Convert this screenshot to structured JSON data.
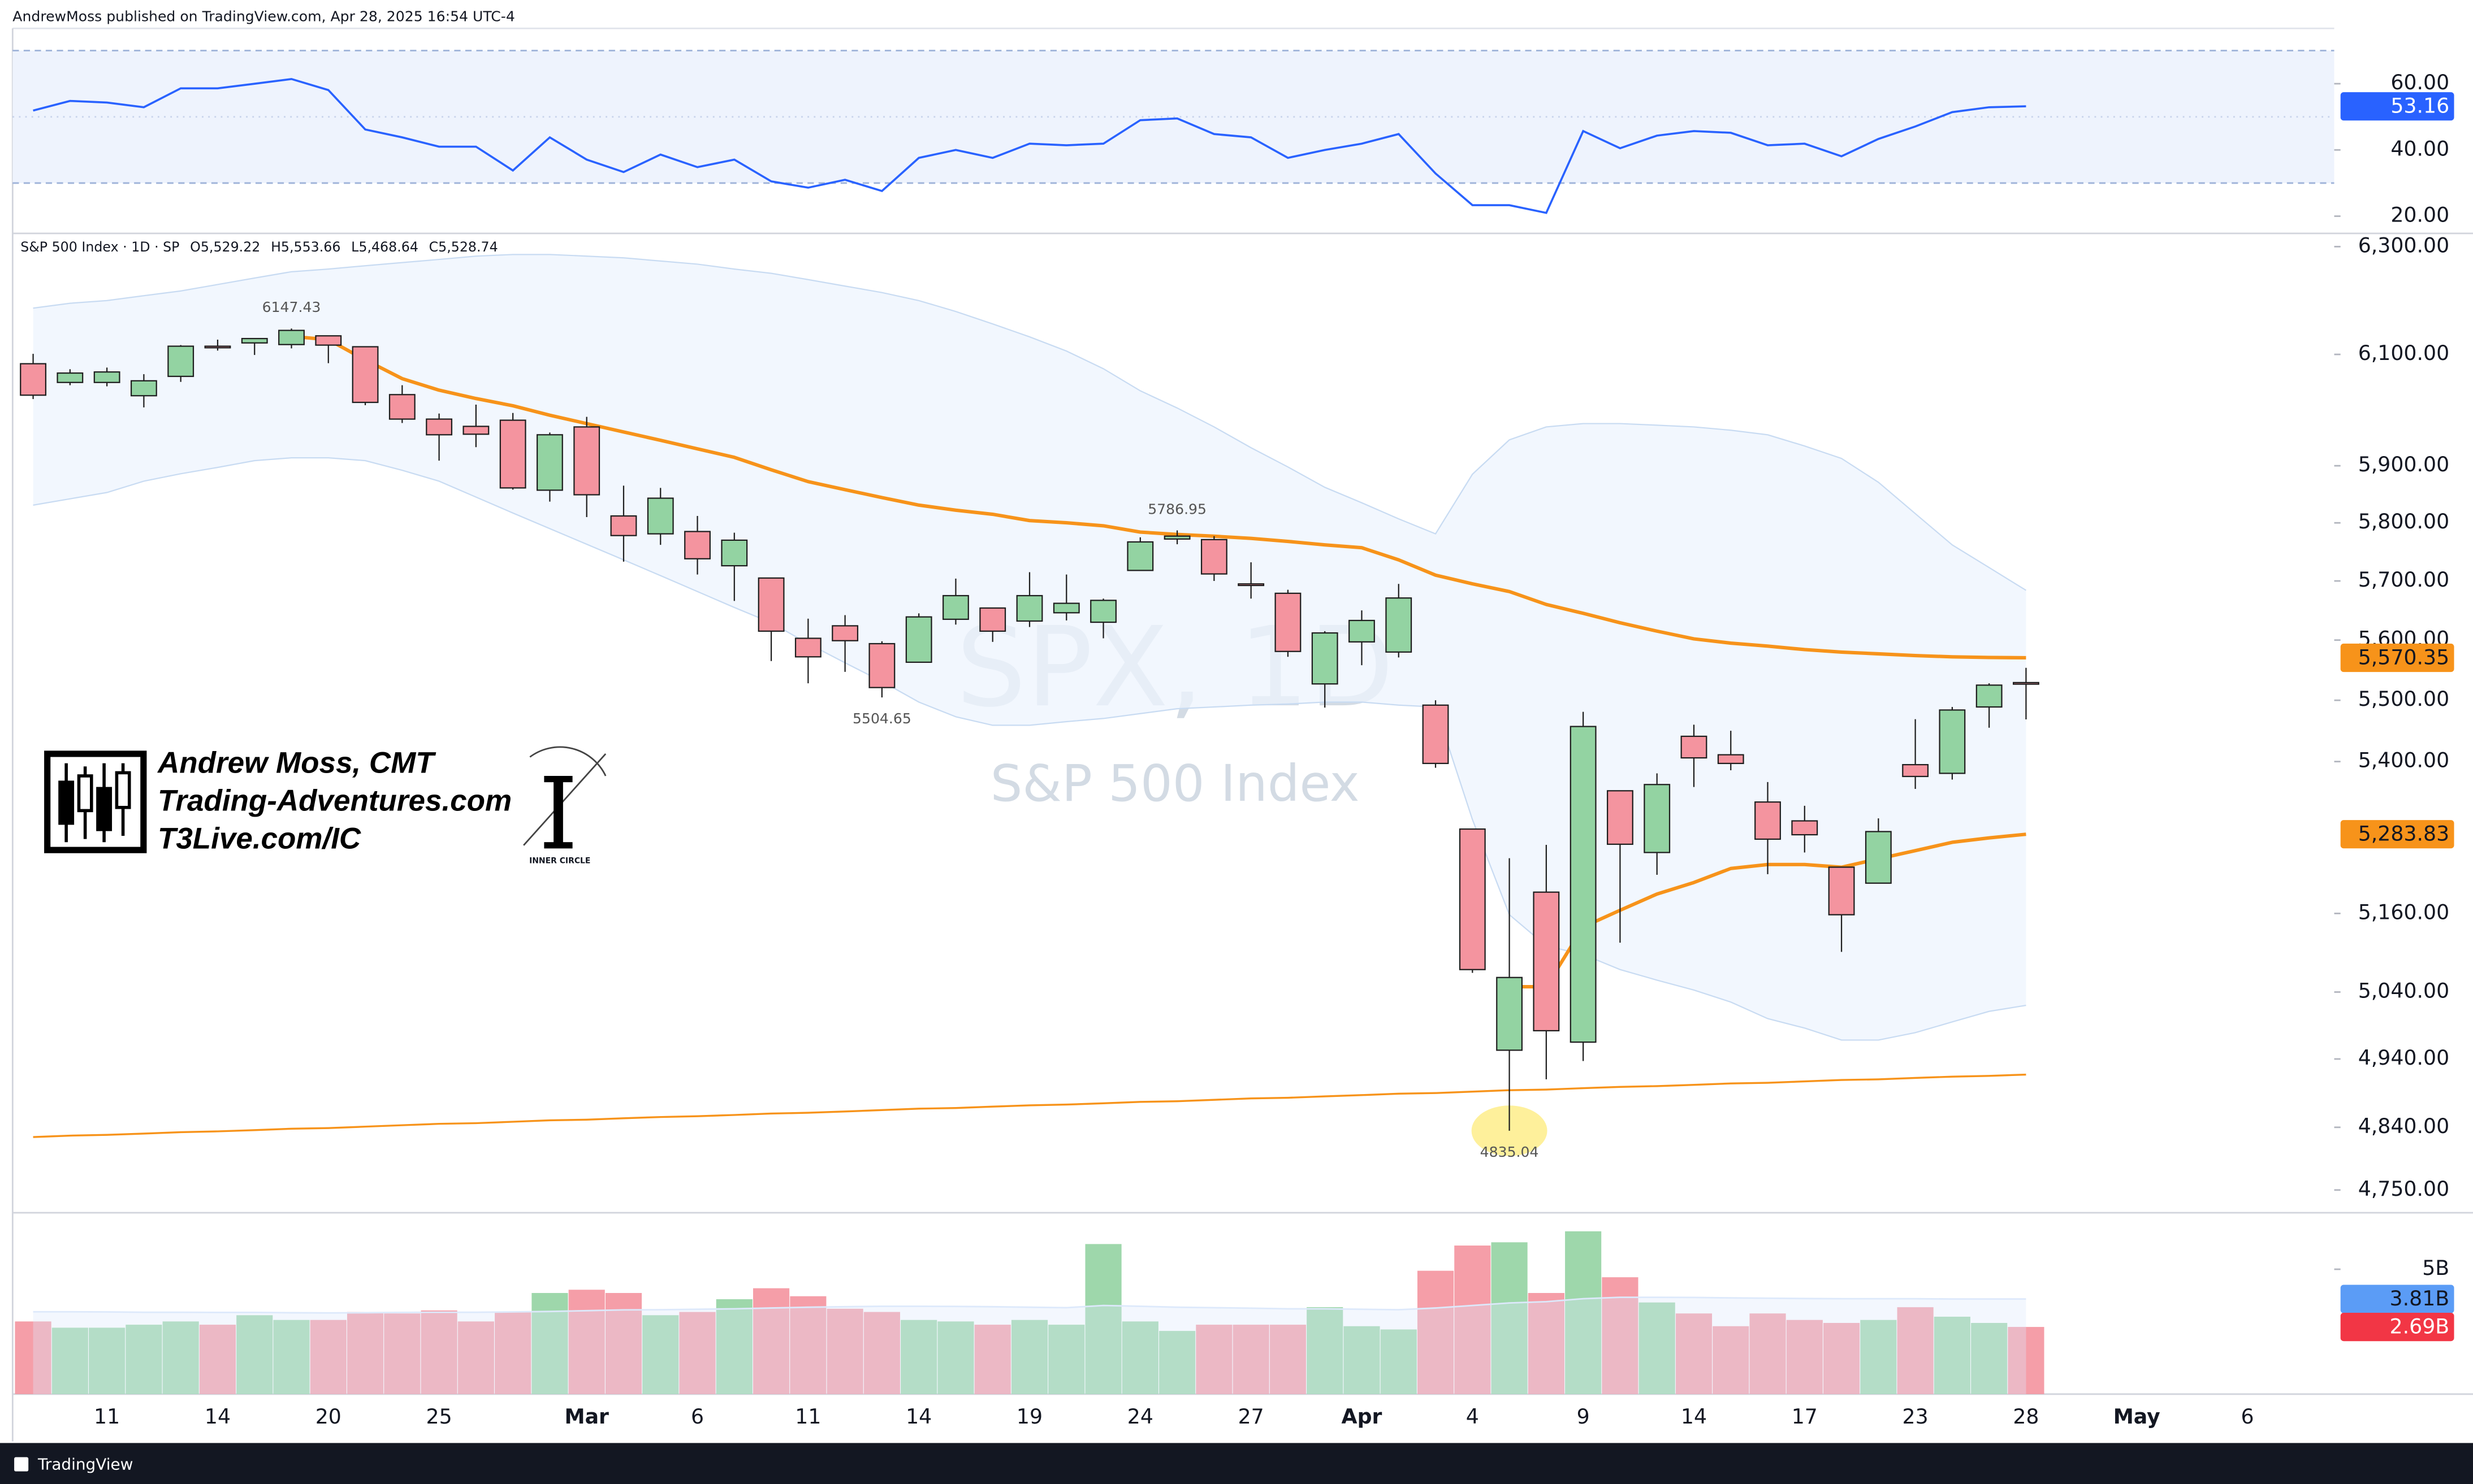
{
  "header": {
    "publisher": "AndrewMoss published on TradingView.com, Apr 28, 2025 16:54 UTC-4"
  },
  "footer": {
    "brand": "TradingView"
  },
  "watermark": {
    "symbol": "SPX, 1D",
    "name": "S&P 500 Index"
  },
  "logo": {
    "lines": [
      "Andrew Moss, CMT",
      "Trading-Adventures.com",
      "T3Live.com/IC"
    ],
    "badge": "INNER CIRCLE"
  },
  "chart_data": [
    {
      "type": "candlestick",
      "title": "S&P 500 Index · 1D · SP",
      "ohlc_legend": [
        "O5,529.22",
        "H5,553.66",
        "L5,468.64",
        "C5,528.74"
      ],
      "categories": [
        null,
        null,
        "11",
        null,
        null,
        "14",
        null,
        null,
        "20",
        null,
        null,
        "25",
        null,
        null,
        null,
        "Mar",
        null,
        null,
        "6",
        null,
        null,
        "11",
        null,
        null,
        "14",
        null,
        null,
        "19",
        null,
        null,
        "24",
        null,
        null,
        "27",
        null,
        null,
        "Apr",
        null,
        null,
        "4",
        null,
        null,
        "9",
        null,
        null,
        "14",
        null,
        null,
        "17",
        null,
        null,
        "23",
        null,
        null,
        "28",
        null,
        null,
        "May",
        null,
        null,
        "6"
      ],
      "open": [
        6083,
        6049,
        6049,
        6025,
        6060,
        6115,
        6121,
        6118,
        6134,
        6114,
        6027,
        5983,
        5970,
        5981,
        5857,
        5969,
        5812,
        5781,
        5785,
        5726,
        5705,
        5603,
        5624,
        5594,
        5563,
        5635,
        5654,
        5632,
        5646,
        5630,
        5718,
        5772,
        5771,
        5695,
        5679,
        5527,
        5597,
        5580,
        5492,
        5292,
        4953,
        5193,
        4965,
        5353,
        5255,
        5441,
        5411,
        5335,
        5305,
        5232,
        5207,
        5395,
        5381,
        5489,
        5529.22,
        null,
        null,
        null,
        null,
        null,
        null
      ],
      "high": [
        6101,
        6073,
        6076,
        6064,
        6117,
        6127,
        6129,
        6147.43,
        6134,
        6115,
        6044,
        5993,
        6009,
        5994,
        5959,
        5987,
        5865,
        5861,
        5812,
        5783,
        5705,
        5636,
        5642,
        5598,
        5645,
        5704,
        5654,
        5715,
        5711,
        5670,
        5775,
        5786.95,
        5777,
        5732,
        5685,
        5615,
        5650,
        5695,
        5500,
        5292,
        5246,
        5267,
        5481,
        5353,
        5381,
        5460,
        5450,
        5367,
        5329,
        5232,
        5309,
        5469,
        5489,
        5528,
        5553.66,
        null,
        null,
        null,
        null,
        null,
        null
      ],
      "low": [
        6019,
        6044,
        6042,
        6004,
        6050,
        6107,
        6099,
        6111,
        6084,
        6008,
        5976,
        5909,
        5933,
        5858,
        5837,
        5810,
        5733,
        5762,
        5711,
        5666,
        5565,
        5528,
        5547,
        5504.65,
        5563,
        5626,
        5597,
        5622,
        5633,
        5603,
        5718,
        5763,
        5700,
        5670,
        5572,
        5488,
        5558,
        5571,
        5390,
        5069,
        4835.04,
        4910,
        4937,
        5115,
        5220,
        5359,
        5386,
        5221,
        5255,
        5101,
        5207,
        5356,
        5371,
        5455,
        5468.64,
        null,
        null,
        null,
        null,
        null,
        null
      ],
      "close": [
        6026,
        6066,
        6068,
        6052,
        6115,
        6114,
        6129,
        6144,
        6117,
        6013,
        5983,
        5955,
        5956,
        5861,
        5955,
        5849,
        5778,
        5843,
        5738,
        5770,
        5615,
        5572,
        5599,
        5521,
        5639,
        5675,
        5615,
        5675,
        5662,
        5667,
        5767,
        5777,
        5712,
        5693,
        5581,
        5612,
        5633,
        5671,
        5397,
        5074,
        5062,
        4982,
        5457,
        5268,
        5363,
        5406,
        5397,
        5276,
        5283,
        5158,
        5288,
        5376,
        5484,
        5525,
        5528.74,
        null,
        null,
        null,
        null,
        null,
        null
      ],
      "up_color": "#93d3a2",
      "down_color": "#f4949f",
      "edge_color": "#1e1e1e",
      "overlays": [
        {
          "kind": "band",
          "color": "#c8dbf2",
          "fill": "#edf4fd",
          "upper": [
            6185,
            6194,
            6199,
            6208,
            6217,
            6229,
            6241,
            6253,
            6258,
            6264,
            6270,
            6276,
            6282,
            6285,
            6285,
            6282,
            6279,
            6273,
            6267,
            6258,
            6250,
            6238,
            6226,
            6214,
            6199,
            6179,
            6156,
            6132,
            6106,
            6074,
            6034,
            6003,
            5969,
            5932,
            5898,
            5862,
            5835,
            5807,
            5781,
            5885,
            5946,
            5969,
            5975,
            5975,
            5972,
            5969,
            5963,
            5955,
            5935,
            5913,
            5871,
            5816,
            5762,
            5723,
            5684,
            null,
            null,
            null,
            null,
            null,
            null
          ],
          "lower": [
            5831,
            5842,
            5853,
            5873,
            5886,
            5897,
            5909,
            5914,
            5914,
            5909,
            5892,
            5873,
            5845,
            5817,
            5790,
            5763,
            5736,
            5709,
            5682,
            5655,
            5629,
            5594,
            5562,
            5531,
            5497,
            5473,
            5459,
            5459,
            5465,
            5470,
            5478,
            5486,
            5489,
            5492,
            5494,
            5497,
            5497,
            5492,
            5489,
            5307,
            5158,
            5110,
            5097,
            5074,
            5058,
            5043,
            5025,
            5000,
            4986,
            4968,
            4968,
            4979,
            4995,
            5011,
            5020,
            null,
            null,
            null,
            null,
            null,
            null
          ]
        },
        {
          "kind": "line",
          "color": "#f7931a",
          "width": 1.2,
          "values": [
            4826,
            4828,
            4829,
            4831,
            4833,
            4834,
            4836,
            4838,
            4839,
            4841,
            4843,
            4845,
            4846,
            4848,
            4850,
            4851,
            4853,
            4855,
            4856,
            4858,
            4860,
            4861,
            4863,
            4865,
            4867,
            4868,
            4870,
            4872,
            4873,
            4875,
            4877,
            4878,
            4880,
            4882,
            4883,
            4885,
            4887,
            4889,
            4890,
            4892,
            4894,
            4895,
            4897,
            4899,
            4900,
            4902,
            4904,
            4905,
            4907,
            4909,
            4910,
            4912,
            4914,
            4915,
            4917,
            null,
            null,
            null,
            null,
            null,
            null
          ]
        },
        {
          "kind": "line",
          "color": "#f7931a",
          "width": 2.2,
          "values": [
            null,
            null,
            null,
            null,
            null,
            null,
            null,
            6133,
            6127,
            6090,
            6056,
            6035,
            6020,
            6007,
            5990,
            5975,
            5960,
            5945,
            5930,
            5915,
            5893,
            5872,
            5858,
            5844,
            5831,
            5822,
            5815,
            5804,
            5800,
            5795,
            5784,
            5780,
            5777,
            5773,
            5768,
            5762,
            5757,
            5736,
            5710,
            5695,
            5682,
            5660,
            5645,
            5629,
            5615,
            5602,
            5595,
            5590,
            5584,
            5580,
            5577,
            5574,
            5572,
            5571,
            5570.35,
            null,
            null,
            null,
            null,
            null,
            null
          ],
          "value_labels": [
            null,
            null,
            null,
            null,
            null,
            null,
            null,
            null,
            null,
            null,
            null,
            null,
            null,
            null,
            null,
            null,
            null,
            null,
            null,
            null,
            null,
            null,
            null,
            null,
            null,
            null,
            null,
            null,
            null,
            null,
            null,
            null,
            null,
            null,
            null,
            null,
            null,
            null,
            null,
            null,
            null,
            null,
            null,
            null,
            null,
            null,
            null,
            null,
            null,
            null,
            null,
            null,
            null,
            null,
            "5,570.35",
            null,
            null,
            null,
            null,
            null,
            null
          ]
        },
        {
          "kind": "line",
          "color": "#f7931a",
          "width": 2.2,
          "values": [
            null,
            null,
            null,
            null,
            null,
            null,
            null,
            null,
            null,
            null,
            null,
            null,
            null,
            null,
            null,
            null,
            null,
            null,
            null,
            null,
            null,
            null,
            null,
            null,
            null,
            null,
            null,
            null,
            null,
            null,
            null,
            null,
            null,
            null,
            null,
            null,
            null,
            null,
            null,
            null,
            5048,
            5048,
            5139,
            5165,
            5190,
            5208,
            5230,
            5236,
            5236,
            5232,
            5245,
            5258,
            5271,
            5278,
            5283.83,
            null,
            null,
            null,
            null,
            null,
            null
          ],
          "value_labels": [
            null,
            null,
            null,
            null,
            null,
            null,
            null,
            null,
            null,
            null,
            null,
            null,
            null,
            null,
            null,
            null,
            null,
            null,
            null,
            null,
            null,
            null,
            null,
            null,
            null,
            null,
            null,
            null,
            null,
            null,
            null,
            null,
            null,
            null,
            null,
            null,
            null,
            null,
            null,
            null,
            null,
            null,
            null,
            null,
            null,
            null,
            null,
            null,
            null,
            null,
            null,
            null,
            null,
            null,
            "5,283.83",
            null,
            null,
            null,
            null,
            null,
            null
          ]
        }
      ],
      "annotations": [
        {
          "value": 6147.43
        },
        {
          "value": 5786.95
        },
        {
          "value": 5504.65
        },
        {
          "value": 4835.04,
          "highlight": "#fdeb7a"
        }
      ],
      "log": true,
      "grid": false,
      "ylim": [
        4720,
        6325
      ],
      "yticks": [
        {
          "value": 4750,
          "label": "4,750.00"
        },
        {
          "value": 4840,
          "label": "4,840.00"
        },
        {
          "value": 4940,
          "label": "4,940.00"
        },
        {
          "value": 5040,
          "label": "5,040.00"
        },
        {
          "value": 5160,
          "label": "5,160.00"
        },
        {
          "value": 5400,
          "label": "5,400.00"
        },
        {
          "value": 5500,
          "label": "5,500.00"
        },
        {
          "value": 5600,
          "label": "5,600.00"
        },
        {
          "value": 5700,
          "label": "5,700.00"
        },
        {
          "value": 5800,
          "label": "5,800.00"
        },
        {
          "value": 5900,
          "label": "5,900.00"
        },
        {
          "value": 6100,
          "label": "6,100.00"
        },
        {
          "value": 6300,
          "label": "6,300.00"
        }
      ]
    },
    {
      "type": "line",
      "color": "#2962ff",
      "values": [
        51.9,
        54.8,
        54.3,
        52.9,
        58.6,
        58.6,
        60.0,
        61.4,
        58.1,
        46.2,
        43.8,
        41.0,
        41.0,
        33.8,
        43.8,
        37.1,
        33.3,
        38.6,
        34.8,
        37.1,
        30.5,
        28.6,
        31.0,
        27.6,
        37.6,
        40.0,
        37.6,
        41.9,
        41.4,
        41.9,
        49.0,
        49.5,
        44.8,
        43.8,
        37.6,
        40.0,
        41.9,
        44.8,
        32.9,
        23.3,
        23.3,
        21.0,
        45.7,
        40.5,
        44.3,
        45.7,
        45.2,
        41.4,
        41.9,
        38.1,
        43.3,
        47.1,
        51.4,
        52.9,
        53.16
      ],
      "levels": [
        30,
        50,
        70
      ],
      "band_color": "#eef3fd",
      "level_color": "#9fb3d9",
      "ylim": [
        14.8,
        76.7
      ],
      "yticks": [
        {
          "value": 20,
          "label": "20.00"
        },
        {
          "value": 40,
          "label": "40.00"
        },
        {
          "value": 60,
          "label": "60.00"
        }
      ]
    },
    {
      "type": "bar",
      "values": [
        2.91,
        2.66,
        2.66,
        2.78,
        2.91,
        2.78,
        3.16,
        2.97,
        2.97,
        3.29,
        3.23,
        3.35,
        2.91,
        3.29,
        4.05,
        4.18,
        4.05,
        3.16,
        3.29,
        3.8,
        4.24,
        3.92,
        3.42,
        3.29,
        2.97,
        2.91,
        2.78,
        2.97,
        2.78,
        6.01,
        2.91,
        2.53,
        2.78,
        2.78,
        2.78,
        3.48,
        2.72,
        2.59,
        4.94,
        5.95,
        6.08,
        4.05,
        6.52,
        4.68,
        3.67,
        3.23,
        2.72,
        3.23,
        2.97,
        2.85,
        2.97,
        3.48,
        3.1,
        2.85,
        2.69
      ],
      "value_labels": [
        null,
        null,
        null,
        null,
        null,
        null,
        null,
        null,
        null,
        null,
        null,
        null,
        null,
        null,
        null,
        null,
        null,
        null,
        null,
        null,
        null,
        null,
        null,
        null,
        null,
        null,
        null,
        null,
        null,
        null,
        null,
        null,
        null,
        null,
        null,
        null,
        null,
        null,
        null,
        null,
        null,
        null,
        null,
        null,
        null,
        null,
        null,
        null,
        null,
        null,
        null,
        null,
        null,
        null,
        "2.69B"
      ],
      "ma_values": [
        3.3,
        3.3,
        3.29,
        3.28,
        3.28,
        3.27,
        3.27,
        3.26,
        3.25,
        3.26,
        3.27,
        3.28,
        3.28,
        3.29,
        3.31,
        3.34,
        3.37,
        3.38,
        3.4,
        3.42,
        3.45,
        3.48,
        3.5,
        3.52,
        3.52,
        3.51,
        3.5,
        3.48,
        3.46,
        3.55,
        3.52,
        3.48,
        3.46,
        3.44,
        3.42,
        3.42,
        3.4,
        3.38,
        3.45,
        3.55,
        3.65,
        3.7,
        3.82,
        3.88,
        3.88,
        3.87,
        3.85,
        3.84,
        3.83,
        3.82,
        3.82,
        3.82,
        3.81,
        3.81,
        3.81
      ],
      "ma_value_labels": [
        null,
        null,
        null,
        null,
        null,
        null,
        null,
        null,
        null,
        null,
        null,
        null,
        null,
        null,
        null,
        null,
        null,
        null,
        null,
        null,
        null,
        null,
        null,
        null,
        null,
        null,
        null,
        null,
        null,
        null,
        null,
        null,
        null,
        null,
        null,
        null,
        null,
        null,
        null,
        null,
        null,
        null,
        null,
        null,
        null,
        null,
        null,
        null,
        null,
        null,
        null,
        null,
        null,
        null,
        "3.81B"
      ],
      "ma_color": "#5b9cf6",
      "ma_fill": "#dde9fb",
      "label_color": "#f23645",
      "ylim": [
        0,
        7.2
      ],
      "yticks": [
        {
          "value": 5,
          "label": "5B"
        }
      ]
    }
  ]
}
